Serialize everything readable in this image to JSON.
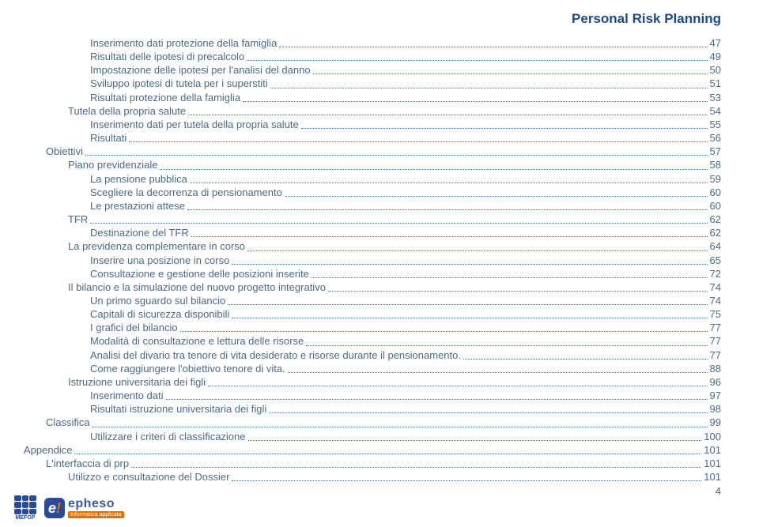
{
  "colors": {
    "header_title": "#1a4a8a",
    "toc_text": "#4a6a8a",
    "page_number": "#4a6a8a",
    "mefop_blue": "#2a4a9a",
    "mefop_label": "#2a4a9a",
    "epheso_badge_bg": "#2a4a9a",
    "epheso_bang": "#e07000",
    "epheso_word": "#3a5a9a",
    "epheso_sub_bg": "#e07000"
  },
  "header": {
    "title": "Personal Risk Planning"
  },
  "toc": [
    {
      "indent": 3,
      "label": "Inserimento dati protezione della famiglia",
      "page": 47
    },
    {
      "indent": 3,
      "label": "Risultati delle ipotesi di precalcolo",
      "page": 49
    },
    {
      "indent": 3,
      "label": "Impostazione delle ipotesi per l'analisi del danno",
      "page": 50
    },
    {
      "indent": 3,
      "label": "Sviluppo ipotesi di tutela per i superstiti",
      "page": 51
    },
    {
      "indent": 3,
      "label": "Risultati protezione della famiglia",
      "page": 53
    },
    {
      "indent": 2,
      "label": "Tutela della propria salute",
      "page": 54
    },
    {
      "indent": 3,
      "label": "Inserimento dati per tutela della propria salute",
      "page": 55
    },
    {
      "indent": 3,
      "label": "Risultati",
      "page": 56
    },
    {
      "indent": 1,
      "label": "Obiettivi",
      "page": 57
    },
    {
      "indent": 2,
      "label": "Piano previdenziale",
      "page": 58
    },
    {
      "indent": 3,
      "label": "La  pensione pubblica",
      "page": 59
    },
    {
      "indent": 3,
      "label": "Scegliere la decorrenza di pensionamento",
      "page": 60
    },
    {
      "indent": 3,
      "label": "Le prestazioni attese",
      "page": 60
    },
    {
      "indent": 2,
      "label": "TFR",
      "page": 62
    },
    {
      "indent": 3,
      "label": "Destinazione del TFR",
      "page": 62
    },
    {
      "indent": 2,
      "label": "La previdenza complementare in corso",
      "page": 64
    },
    {
      "indent": 3,
      "label": "Inserire una  posizione in corso",
      "page": 65
    },
    {
      "indent": 3,
      "label": "Consultazione e gestione delle posizioni inserite",
      "page": 72
    },
    {
      "indent": 2,
      "label": "Il bilancio e la simulazione del nuovo progetto integrativo",
      "page": 74
    },
    {
      "indent": 3,
      "label": "Un primo sguardo sul bilancio",
      "page": 74
    },
    {
      "indent": 3,
      "label": "Capitali di sicurezza disponibili",
      "page": 75
    },
    {
      "indent": 3,
      "label": "I grafici del bilancio",
      "page": 77
    },
    {
      "indent": 3,
      "label": "Modalità di consultazione e lettura delle risorse",
      "page": 77
    },
    {
      "indent": 3,
      "label": "Analisi del divario tra tenore di vita desiderato e risorse durante il pensionamento.",
      "page": 77
    },
    {
      "indent": 3,
      "label": "Come raggiungere l'obiettivo tenore di vita.",
      "page": 88
    },
    {
      "indent": 2,
      "label": "Istruzione universitaria dei figli",
      "page": 96
    },
    {
      "indent": 3,
      "label": "Inserimento dati",
      "page": 97
    },
    {
      "indent": 3,
      "label": "Risultati istruzione universitaria dei figli",
      "page": 98
    },
    {
      "indent": 1,
      "label": "Classifica",
      "page": 99
    },
    {
      "indent": 3,
      "label": "Utilizzare i criteri di classificazione",
      "page": 100
    },
    {
      "indent": 0,
      "label": "Appendice",
      "page": 101
    },
    {
      "indent": 1,
      "label": "L'interfaccia di prp",
      "page": 101
    },
    {
      "indent": 2,
      "label": "Utilizzo e consultazione del Dossier",
      "page": 101
    }
  ],
  "page_number": 4,
  "footer": {
    "mefop_label": "MEFOP",
    "epheso_e": "e",
    "epheso_bang": "!",
    "epheso_word": "epheso",
    "epheso_sub": "Informatica applicata"
  }
}
